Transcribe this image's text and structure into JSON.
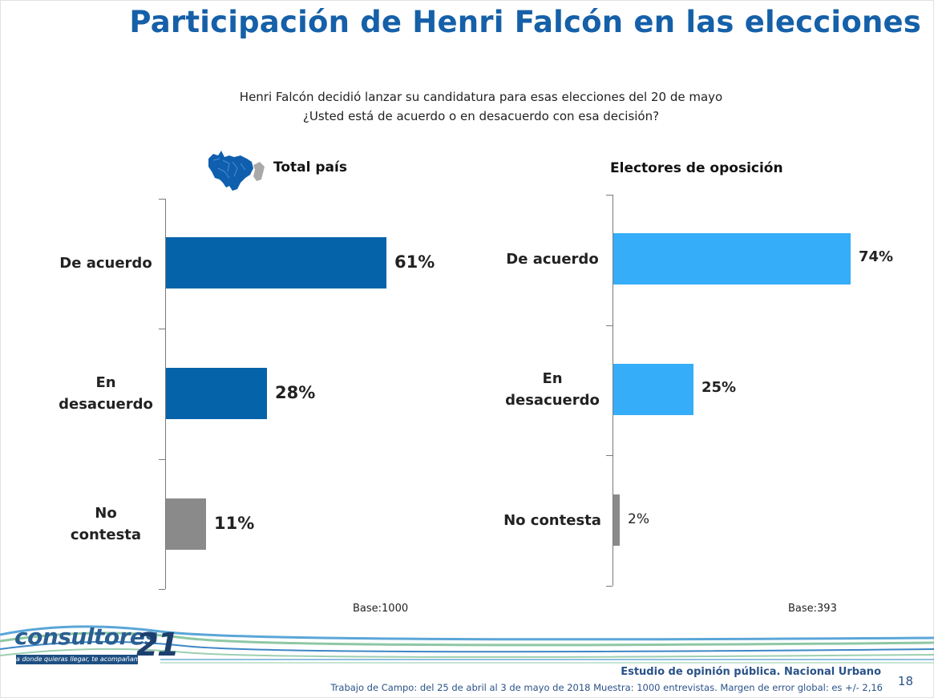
{
  "title": "Participación de Henri Falcón en las elecciones",
  "question": {
    "line1": "Henri Falcón decidió lanzar su candidatura para esas elecciones del 20 de mayo",
    "line2": "¿Usted está de acuerdo o en desacuerdo con esa decisión?"
  },
  "colors": {
    "total_bar": "#0563aa",
    "opposition_bar": "#35adf8",
    "no_answer_bar": "#8a8a8a",
    "title": "#1560a8"
  },
  "icons": {
    "map": "venezuela-map-icon"
  },
  "chart_data": [
    {
      "type": "bar",
      "orientation": "horizontal",
      "title": "Total país",
      "categories": [
        "De acuerdo",
        "En desacuerdo",
        "No contesta"
      ],
      "category_lines": [
        [
          "De acuerdo"
        ],
        [
          "En",
          "desacuerdo"
        ],
        [
          "No",
          "contesta"
        ]
      ],
      "values": [
        61,
        28,
        11
      ],
      "value_labels": [
        "61%",
        "28%",
        "11%"
      ],
      "xlim": [
        0,
        100
      ],
      "base": "Base:1000",
      "grid": false
    },
    {
      "type": "bar",
      "orientation": "horizontal",
      "title": "Electores de oposición",
      "categories": [
        "De acuerdo",
        "En desacuerdo",
        "No contesta"
      ],
      "category_lines": [
        [
          "De acuerdo"
        ],
        [
          "En",
          "desacuerdo"
        ],
        [
          "No contesta"
        ]
      ],
      "values": [
        74,
        25,
        2
      ],
      "value_labels": [
        "74%",
        "25%",
        "2%"
      ],
      "xlim": [
        0,
        100
      ],
      "base": "Base:393",
      "grid": false
    }
  ],
  "logo": {
    "name": "consultores",
    "number": "21",
    "tagline": "a donde quieras llegar, te acompañamos"
  },
  "footer": {
    "study": "Estudio de opinión pública. Nacional Urbano",
    "fieldwork": "Trabajo de Campo: del 25 de abril al 3 de mayo de 2018 Muestra: 1000  entrevistas. Margen de error global: es +/- 2,16",
    "page": "18"
  }
}
